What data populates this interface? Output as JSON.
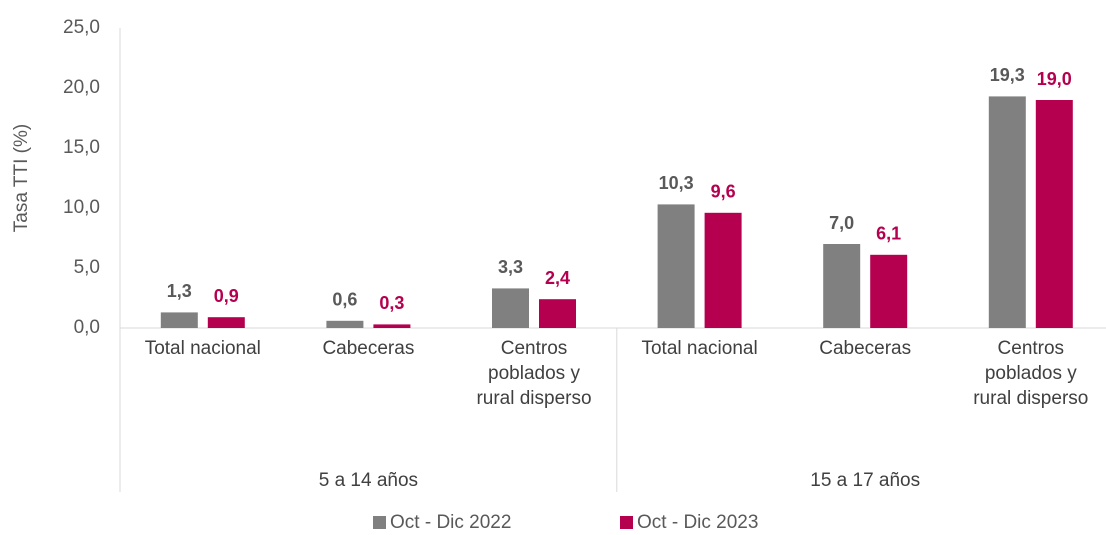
{
  "chart_data": {
    "type": "bar",
    "y_label": "Tasa TTI (%)",
    "groups": [
      {
        "name": "5 a 14 años",
        "categories": [
          "Total nacional",
          "Cabeceras",
          "Centros\npoblados y\nrural disperso"
        ]
      },
      {
        "name": "15 a 17 años",
        "categories": [
          "Total nacional",
          "Cabeceras",
          "Centros\npoblados y\nrural disperso"
        ]
      }
    ],
    "series": [
      {
        "name": "Oct - Dic 2022",
        "color": "#808080",
        "label_color": "#595959",
        "values": [
          1.3,
          0.6,
          3.3,
          10.3,
          7.0,
          19.3
        ],
        "value_labels": [
          "1,3",
          "0,6",
          "3,3",
          "10,3",
          "7,0",
          "19,3"
        ]
      },
      {
        "name": "Oct - Dic 2023",
        "color": "#b5004f",
        "label_color": "#b5004f",
        "values": [
          0.9,
          0.3,
          2.4,
          9.6,
          6.1,
          19.0
        ],
        "value_labels": [
          "0,9",
          "0,3",
          "2,4",
          "9,6",
          "6,1",
          "19,0"
        ]
      }
    ],
    "ylim": [
      0,
      25
    ],
    "yticks": [
      {
        "value": 0,
        "label": "0,0"
      },
      {
        "value": 5,
        "label": "5,0"
      },
      {
        "value": 10,
        "label": "10,0"
      },
      {
        "value": 15,
        "label": "15,0"
      },
      {
        "value": 20,
        "label": "20,0"
      },
      {
        "value": 25,
        "label": "25,0"
      }
    ],
    "grid": false,
    "legend": "bottom"
  }
}
